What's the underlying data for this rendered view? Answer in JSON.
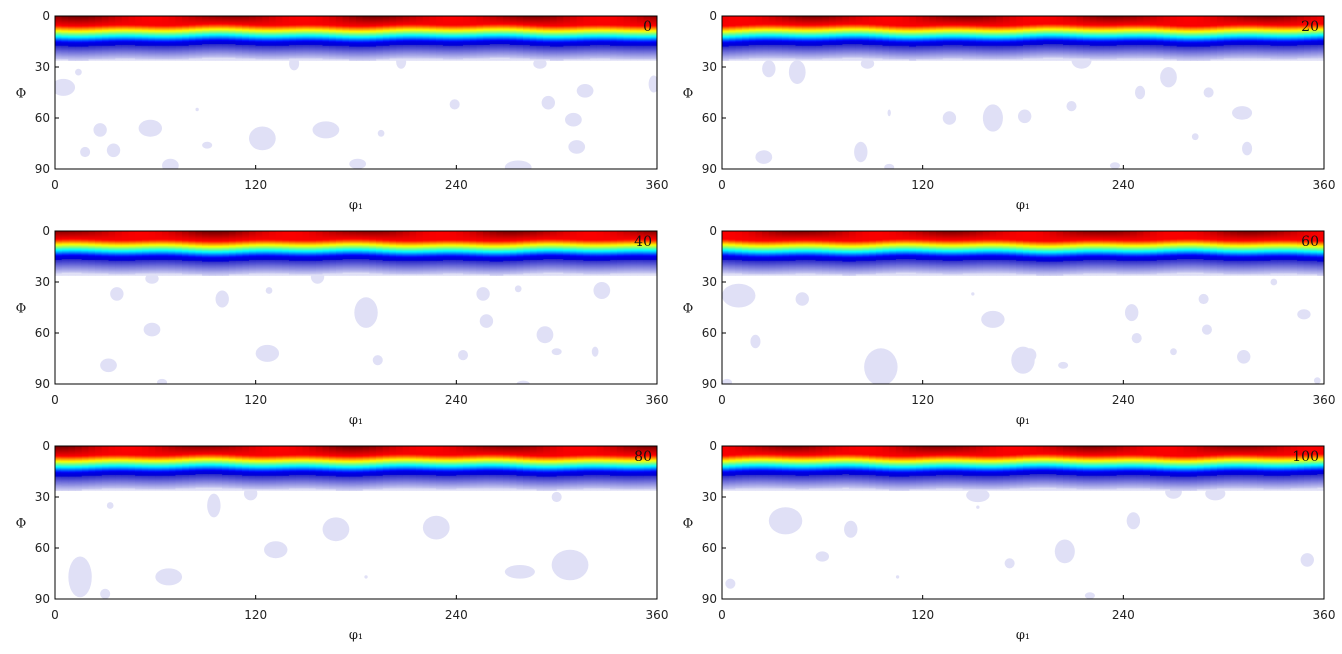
{
  "chart_data": [
    {
      "type": "heatmap",
      "panel_label": "0",
      "xlabel": "φ₁",
      "ylabel": "Φ",
      "xlim": [
        0,
        360
      ],
      "ylim": [
        0,
        90
      ],
      "xticks": [
        "0",
        "120",
        "240",
        "360"
      ],
      "yticks": [
        "0",
        "30",
        "60",
        "90"
      ],
      "colormap": "jet",
      "band": {
        "Phi_peak_start": 0,
        "Phi_peak_end": 5,
        "Phi_low_center": 15,
        "Phi_fade_end": 26
      },
      "blobs": [
        [
          5,
          42,
          7,
          5
        ],
        [
          14,
          33,
          2,
          2
        ],
        [
          18,
          80,
          3,
          3
        ],
        [
          27,
          67,
          4,
          4
        ],
        [
          35,
          79,
          4,
          4
        ],
        [
          57,
          66,
          7,
          5
        ],
        [
          69,
          88,
          5,
          4
        ],
        [
          85,
          55,
          1,
          1
        ],
        [
          91,
          76,
          3,
          2
        ],
        [
          124,
          72,
          8,
          7
        ],
        [
          162,
          67,
          8,
          5
        ],
        [
          181,
          87,
          5,
          3
        ],
        [
          195,
          69,
          2,
          2
        ],
        [
          239,
          52,
          3,
          3
        ],
        [
          277,
          89,
          8,
          4
        ],
        [
          295,
          51,
          4,
          4
        ],
        [
          317,
          44,
          5,
          4
        ],
        [
          310,
          61,
          5,
          4
        ],
        [
          312,
          77,
          5,
          4
        ],
        [
          358,
          40,
          3,
          5
        ],
        [
          143,
          28,
          3,
          4
        ],
        [
          207,
          27,
          3,
          4
        ],
        [
          290,
          28,
          4,
          3
        ]
      ]
    },
    {
      "type": "heatmap",
      "panel_label": "20",
      "xlabel": "φ₁",
      "ylabel": "Φ",
      "xlim": [
        0,
        360
      ],
      "ylim": [
        0,
        90
      ],
      "xticks": [
        "0",
        "120",
        "240",
        "360"
      ],
      "yticks": [
        "0",
        "30",
        "60",
        "90"
      ],
      "colormap": "jet",
      "band": {
        "Phi_peak_start": 0,
        "Phi_peak_end": 5,
        "Phi_low_center": 15,
        "Phi_fade_end": 26
      },
      "blobs": [
        [
          28,
          31,
          4,
          5
        ],
        [
          45,
          33,
          5,
          7
        ],
        [
          25,
          83,
          5,
          4
        ],
        [
          83,
          80,
          4,
          6
        ],
        [
          100,
          89,
          3,
          2
        ],
        [
          100,
          57,
          1,
          2
        ],
        [
          136,
          60,
          4,
          4
        ],
        [
          162,
          60,
          6,
          8
        ],
        [
          181,
          59,
          4,
          4
        ],
        [
          209,
          53,
          3,
          3
        ],
        [
          235,
          88,
          3,
          2
        ],
        [
          250,
          45,
          3,
          4
        ],
        [
          267,
          36,
          5,
          6
        ],
        [
          291,
          45,
          3,
          3
        ],
        [
          311,
          57,
          6,
          4
        ],
        [
          283,
          71,
          2,
          2
        ],
        [
          314,
          78,
          3,
          4
        ],
        [
          215,
          26,
          6,
          5
        ],
        [
          87,
          28,
          4,
          3
        ]
      ]
    },
    {
      "type": "heatmap",
      "panel_label": "40",
      "xlabel": "φ₁",
      "ylabel": "Φ",
      "xlim": [
        0,
        360
      ],
      "ylim": [
        0,
        90
      ],
      "xticks": [
        "0",
        "120",
        "240",
        "360"
      ],
      "yticks": [
        "0",
        "30",
        "60",
        "90"
      ],
      "colormap": "jet",
      "band": {
        "Phi_peak_start": 0,
        "Phi_peak_end": 5,
        "Phi_low_center": 15,
        "Phi_fade_end": 26
      },
      "blobs": [
        [
          37,
          37,
          4,
          4
        ],
        [
          58,
          58,
          5,
          4
        ],
        [
          32,
          79,
          5,
          4
        ],
        [
          64,
          89,
          3,
          2
        ],
        [
          100,
          40,
          4,
          5
        ],
        [
          127,
          72,
          7,
          5
        ],
        [
          128,
          35,
          2,
          2
        ],
        [
          186,
          48,
          7,
          9
        ],
        [
          193,
          76,
          3,
          3
        ],
        [
          244,
          73,
          3,
          3
        ],
        [
          256,
          37,
          4,
          4
        ],
        [
          258,
          53,
          4,
          4
        ],
        [
          277,
          34,
          2,
          2
        ],
        [
          293,
          61,
          5,
          5
        ],
        [
          300,
          71,
          3,
          2
        ],
        [
          323,
          71,
          2,
          3
        ],
        [
          327,
          35,
          5,
          5
        ],
        [
          280,
          90,
          4,
          2
        ],
        [
          58,
          28,
          4,
          3
        ],
        [
          157,
          27,
          4,
          4
        ]
      ]
    },
    {
      "type": "heatmap",
      "panel_label": "60",
      "xlabel": "φ₁",
      "ylabel": "Φ",
      "xlim": [
        0,
        360
      ],
      "ylim": [
        0,
        90
      ],
      "xticks": [
        "0",
        "120",
        "240",
        "360"
      ],
      "yticks": [
        "0",
        "30",
        "60",
        "90"
      ],
      "colormap": "jet",
      "band": {
        "Phi_peak_start": 0,
        "Phi_peak_end": 5,
        "Phi_low_center": 15,
        "Phi_fade_end": 26
      },
      "blobs": [
        [
          10,
          38,
          10,
          7
        ],
        [
          20,
          65,
          3,
          4
        ],
        [
          48,
          40,
          4,
          4
        ],
        [
          95,
          80,
          10,
          11
        ],
        [
          162,
          52,
          7,
          5
        ],
        [
          150,
          37,
          1,
          1
        ],
        [
          180,
          76,
          7,
          8
        ],
        [
          184,
          73,
          4,
          4
        ],
        [
          204,
          79,
          3,
          2
        ],
        [
          245,
          48,
          4,
          5
        ],
        [
          270,
          71,
          2,
          2
        ],
        [
          288,
          40,
          3,
          3
        ],
        [
          290,
          58,
          3,
          3
        ],
        [
          312,
          74,
          4,
          4
        ],
        [
          330,
          30,
          2,
          2
        ],
        [
          348,
          49,
          4,
          3
        ],
        [
          356,
          88,
          2,
          2
        ],
        [
          3,
          89,
          3,
          2
        ],
        [
          248,
          63,
          3,
          3
        ]
      ]
    },
    {
      "type": "heatmap",
      "panel_label": "80",
      "xlabel": "φ₁",
      "ylabel": "Φ",
      "xlim": [
        0,
        360
      ],
      "ylim": [
        0,
        90
      ],
      "xticks": [
        "0",
        "120",
        "240",
        "360"
      ],
      "yticks": [
        "0",
        "30",
        "60",
        "90"
      ],
      "colormap": "jet",
      "band": {
        "Phi_peak_start": 0,
        "Phi_peak_end": 5,
        "Phi_low_center": 15,
        "Phi_fade_end": 26
      },
      "blobs": [
        [
          15,
          77,
          7,
          12
        ],
        [
          30,
          87,
          3,
          3
        ],
        [
          33,
          35,
          2,
          2
        ],
        [
          68,
          77,
          8,
          5
        ],
        [
          95,
          35,
          4,
          7
        ],
        [
          132,
          61,
          7,
          5
        ],
        [
          168,
          49,
          8,
          7
        ],
        [
          186,
          77,
          1,
          1
        ],
        [
          228,
          48,
          8,
          7
        ],
        [
          278,
          74,
          9,
          4
        ],
        [
          308,
          70,
          11,
          9
        ],
        [
          117,
          28,
          4,
          4
        ],
        [
          300,
          30,
          3,
          3
        ]
      ]
    },
    {
      "type": "heatmap",
      "panel_label": "100",
      "xlabel": "φ₁",
      "ylabel": "Φ",
      "xlim": [
        0,
        360
      ],
      "ylim": [
        0,
        90
      ],
      "xticks": [
        "0",
        "120",
        "240",
        "360"
      ],
      "yticks": [
        "0",
        "30",
        "60",
        "90"
      ],
      "colormap": "jet",
      "band": {
        "Phi_peak_start": 0,
        "Phi_peak_end": 5,
        "Phi_low_center": 15,
        "Phi_fade_end": 26
      },
      "blobs": [
        [
          5,
          81,
          3,
          3
        ],
        [
          38,
          44,
          10,
          8
        ],
        [
          60,
          65,
          4,
          3
        ],
        [
          77,
          49,
          4,
          5
        ],
        [
          105,
          77,
          1,
          1
        ],
        [
          153,
          36,
          1,
          1
        ],
        [
          153,
          29,
          7,
          4
        ],
        [
          172,
          69,
          3,
          3
        ],
        [
          205,
          62,
          6,
          7
        ],
        [
          220,
          88,
          3,
          2
        ],
        [
          246,
          44,
          4,
          5
        ],
        [
          295,
          28,
          6,
          4
        ],
        [
          350,
          67,
          4,
          4
        ],
        [
          270,
          27,
          5,
          4
        ]
      ]
    }
  ]
}
